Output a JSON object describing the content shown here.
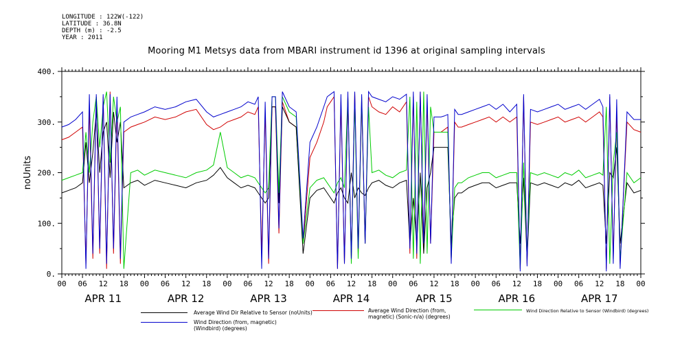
{
  "meta": {
    "longitude": "LONGITUDE : 122W(-122)",
    "latitude": "LATITUDE : 36.8N",
    "depth": "DEPTH (m) : -2.5",
    "year": "YEAR : 2011"
  },
  "chart_data": {
    "type": "line",
    "title": "Mooring M1 Metsys data from MBARI instrument id 1396 at original sampling intervals",
    "ylabel": "noUnits",
    "xlabel": "",
    "ylim": [
      0,
      400
    ],
    "yticks": [
      "0.",
      "100.",
      "200.",
      "300.",
      "400."
    ],
    "xlim_hours": [
      0,
      168
    ],
    "xtick_labels": [
      "00",
      "06",
      "12",
      "18",
      "00",
      "06",
      "12",
      "18",
      "00",
      "06",
      "12",
      "18",
      "00",
      "06",
      "12",
      "18",
      "00",
      "06",
      "12",
      "18",
      "00",
      "06",
      "12",
      "18",
      "00",
      "06",
      "12",
      "18",
      "00"
    ],
    "day_labels": [
      "APR 11",
      "APR 12",
      "APR 13",
      "APR 14",
      "APR 15",
      "APR 16",
      "APR 17"
    ],
    "grid": false,
    "legend_position": "bottom",
    "series": [
      {
        "name": "Average Wind Dir Relative to Sensor (noUnits)",
        "color": "#000000",
        "x": [
          0,
          2,
          4,
          6,
          7,
          8,
          9,
          10,
          11,
          12,
          13,
          14,
          15,
          16,
          17,
          18,
          20,
          22,
          24,
          27,
          30,
          33,
          36,
          39,
          42,
          44,
          46,
          48,
          50,
          52,
          54,
          56,
          57,
          58,
          59,
          60,
          61,
          62,
          63,
          64,
          66,
          68,
          70,
          72,
          74,
          76,
          77,
          78,
          79,
          80,
          81,
          82,
          83,
          84,
          85,
          86,
          87,
          88,
          89,
          90,
          92,
          94,
          96,
          98,
          100,
          101,
          102,
          103,
          104,
          105,
          106,
          107,
          108,
          109,
          110,
          111,
          112,
          113,
          114,
          115,
          116,
          118,
          120,
          122,
          124,
          126,
          128,
          130,
          132,
          133,
          134,
          135,
          136,
          138,
          140,
          142,
          144,
          146,
          148,
          150,
          152,
          154,
          156,
          157,
          158,
          159,
          160,
          161,
          162,
          164,
          166,
          168
        ],
        "values": [
          160,
          165,
          170,
          180,
          260,
          180,
          240,
          320,
          200,
          280,
          300,
          190,
          320,
          260,
          300,
          170,
          180,
          185,
          175,
          185,
          180,
          175,
          170,
          180,
          185,
          195,
          210,
          190,
          180,
          170,
          175,
          170,
          160,
          150,
          140,
          150,
          330,
          330,
          140,
          330,
          300,
          290,
          40,
          150,
          165,
          170,
          160,
          150,
          140,
          160,
          170,
          150,
          140,
          200,
          150,
          170,
          160,
          155,
          170,
          180,
          185,
          175,
          170,
          180,
          185,
          60,
          150,
          60,
          200,
          40,
          170,
          200,
          250,
          250,
          250,
          250,
          250,
          60,
          150,
          160,
          160,
          170,
          175,
          180,
          180,
          170,
          175,
          180,
          180,
          60,
          190,
          30,
          180,
          175,
          180,
          175,
          170,
          180,
          175,
          185,
          170,
          175,
          180,
          175,
          60,
          200,
          190,
          250,
          60,
          180,
          160,
          165
        ]
      },
      {
        "name": "Average Wind Direction (from, magnetic) (Sonic-n/a) (degrees)",
        "color": "#d00000",
        "x": [
          0,
          2,
          4,
          6,
          7,
          8,
          9,
          10,
          11,
          12,
          13,
          14,
          15,
          16,
          17,
          18,
          20,
          22,
          24,
          27,
          30,
          33,
          36,
          39,
          42,
          44,
          46,
          48,
          50,
          52,
          54,
          56,
          57,
          58,
          59,
          60,
          61,
          62,
          63,
          64,
          66,
          68,
          70,
          72,
          74,
          76,
          77,
          78,
          79,
          80,
          81,
          82,
          83,
          84,
          85,
          86,
          87,
          88,
          89,
          90,
          92,
          94,
          96,
          98,
          100,
          101,
          102,
          103,
          104,
          105,
          106,
          107,
          108,
          109,
          110,
          111,
          112,
          113,
          114,
          115,
          116,
          118,
          120,
          122,
          124,
          126,
          128,
          130,
          132,
          133,
          134,
          135,
          136,
          138,
          140,
          142,
          144,
          146,
          148,
          150,
          152,
          154,
          156,
          157,
          158,
          159,
          160,
          161,
          162,
          164,
          166,
          168
        ],
        "values": [
          265,
          270,
          280,
          290,
          20,
          330,
          30,
          350,
          40,
          350,
          10,
          360,
          40,
          330,
          20,
          280,
          290,
          295,
          300,
          310,
          305,
          310,
          320,
          325,
          295,
          285,
          290,
          300,
          305,
          310,
          320,
          315,
          330,
          40,
          320,
          20,
          330,
          330,
          80,
          340,
          300,
          290,
          60,
          230,
          260,
          300,
          330,
          340,
          350,
          10,
          340,
          20,
          350,
          30,
          360,
          40,
          340,
          60,
          350,
          330,
          320,
          315,
          330,
          320,
          340,
          40,
          350,
          30,
          360,
          50,
          340,
          60,
          280,
          280,
          280,
          285,
          290,
          30,
          300,
          290,
          290,
          295,
          300,
          305,
          310,
          300,
          310,
          300,
          310,
          10,
          350,
          20,
          300,
          295,
          300,
          305,
          310,
          300,
          305,
          310,
          300,
          310,
          320,
          310,
          10,
          350,
          30,
          320,
          20,
          300,
          285,
          280
        ]
      },
      {
        "name": "Wind Direction Relative to Sensor (Windbird) (degrees)",
        "color": "#00cc00",
        "x": [
          0,
          2,
          4,
          6,
          7,
          8,
          9,
          10,
          11,
          12,
          13,
          14,
          15,
          16,
          17,
          18,
          20,
          22,
          24,
          27,
          30,
          33,
          36,
          39,
          42,
          44,
          46,
          48,
          50,
          52,
          54,
          56,
          57,
          58,
          59,
          60,
          61,
          62,
          63,
          64,
          66,
          68,
          70,
          72,
          74,
          76,
          77,
          78,
          79,
          80,
          81,
          82,
          83,
          84,
          85,
          86,
          87,
          88,
          89,
          90,
          92,
          94,
          96,
          98,
          100,
          101,
          102,
          103,
          104,
          105,
          106,
          107,
          108,
          109,
          110,
          111,
          112,
          113,
          114,
          115,
          116,
          118,
          120,
          122,
          124,
          126,
          128,
          130,
          132,
          133,
          134,
          135,
          136,
          138,
          140,
          142,
          144,
          146,
          148,
          150,
          152,
          154,
          156,
          157,
          158,
          159,
          160,
          161,
          162,
          164,
          166,
          168
        ],
        "values": [
          185,
          190,
          195,
          200,
          280,
          200,
          300,
          350,
          250,
          330,
          360,
          220,
          350,
          300,
          330,
          10,
          200,
          205,
          195,
          205,
          200,
          195,
          190,
          200,
          205,
          215,
          280,
          210,
          200,
          190,
          195,
          190,
          180,
          170,
          160,
          170,
          350,
          350,
          160,
          350,
          320,
          310,
          60,
          170,
          185,
          190,
          180,
          170,
          160,
          180,
          190,
          170,
          350,
          20,
          340,
          30,
          350,
          60,
          330,
          200,
          205,
          195,
          190,
          200,
          205,
          350,
          30,
          340,
          20,
          360,
          40,
          330,
          280,
          280,
          280,
          280,
          280,
          30,
          170,
          180,
          180,
          190,
          195,
          200,
          200,
          190,
          195,
          200,
          200,
          10,
          220,
          40,
          200,
          195,
          200,
          195,
          190,
          200,
          195,
          205,
          190,
          195,
          200,
          195,
          330,
          20,
          220,
          280,
          30,
          200,
          180,
          190
        ]
      },
      {
        "name": "Wind Direction (from, magnetic) (Windbird) (degrees)",
        "color": "#0000cc",
        "x": [
          0,
          2,
          4,
          6,
          7,
          8,
          9,
          10,
          11,
          12,
          13,
          14,
          15,
          16,
          17,
          18,
          20,
          22,
          24,
          27,
          30,
          33,
          36,
          39,
          42,
          44,
          46,
          48,
          50,
          52,
          54,
          56,
          57,
          58,
          59,
          60,
          61,
          62,
          63,
          64,
          66,
          68,
          70,
          72,
          74,
          76,
          77,
          78,
          79,
          80,
          81,
          82,
          83,
          84,
          85,
          86,
          87,
          88,
          89,
          90,
          92,
          94,
          96,
          98,
          100,
          101,
          102,
          103,
          104,
          105,
          106,
          107,
          108,
          109,
          110,
          111,
          112,
          113,
          114,
          115,
          116,
          118,
          120,
          122,
          124,
          126,
          128,
          130,
          132,
          133,
          134,
          135,
          136,
          138,
          140,
          142,
          144,
          146,
          148,
          150,
          152,
          154,
          156,
          157,
          158,
          159,
          160,
          161,
          162,
          164,
          166,
          168
        ],
        "values": [
          290,
          295,
          305,
          320,
          10,
          355,
          40,
          355,
          50,
          355,
          20,
          355,
          50,
          350,
          30,
          300,
          310,
          315,
          320,
          330,
          325,
          330,
          340,
          345,
          320,
          310,
          315,
          320,
          325,
          330,
          340,
          335,
          350,
          10,
          340,
          30,
          350,
          350,
          90,
          360,
          330,
          320,
          70,
          260,
          290,
          330,
          350,
          355,
          360,
          10,
          355,
          20,
          360,
          30,
          360,
          50,
          355,
          60,
          360,
          350,
          345,
          340,
          350,
          345,
          355,
          50,
          360,
          40,
          360,
          60,
          355,
          60,
          310,
          310,
          310,
          312,
          315,
          20,
          325,
          315,
          315,
          320,
          325,
          330,
          335,
          325,
          335,
          320,
          335,
          5,
          355,
          15,
          325,
          320,
          325,
          330,
          335,
          325,
          330,
          335,
          325,
          335,
          345,
          330,
          5,
          355,
          20,
          345,
          10,
          320,
          305,
          305
        ]
      }
    ]
  }
}
